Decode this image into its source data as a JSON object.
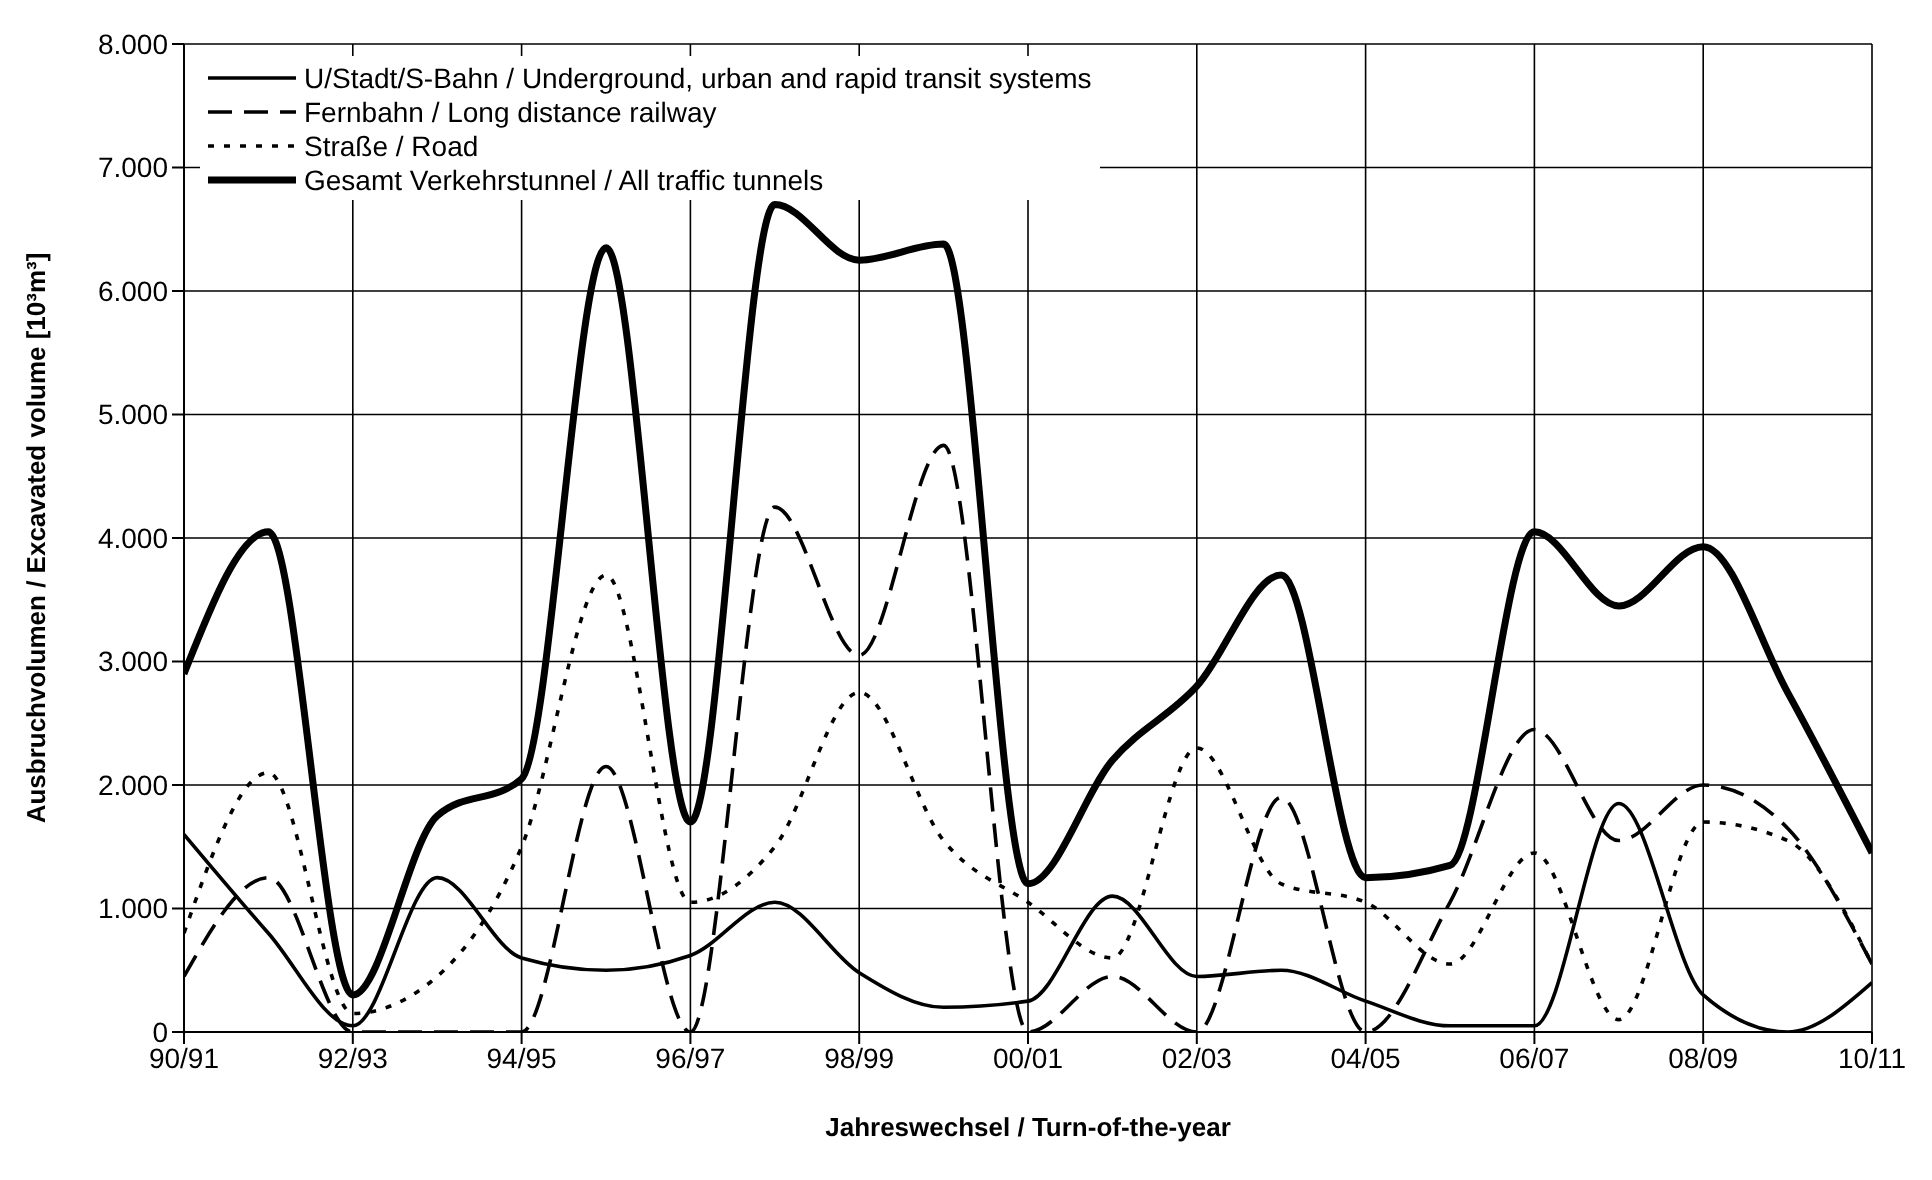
{
  "chart_data": {
    "type": "line",
    "xlabel": "Jahreswechsel / Turn-of-the-year",
    "ylabel": "Ausbruchvolumen / Excavated volume  [10³m³]",
    "categories": [
      "90/91",
      null,
      "92/93",
      null,
      "94/95",
      null,
      "96/97",
      null,
      "98/99",
      null,
      "00/01",
      null,
      "02/03",
      null,
      "04/05",
      null,
      "06/07",
      null,
      "08/09",
      null,
      "10/11"
    ],
    "series": [
      {
        "name": "U/Stadt/S-Bahn / Underground, urban and rapid transit systems",
        "color": "#000000",
        "line_style": "solid",
        "values": [
          1600,
          800,
          50,
          1250,
          600,
          500,
          620,
          1050,
          480,
          200,
          250,
          1100,
          450,
          500,
          250,
          50,
          50,
          1850,
          300,
          0,
          400
        ]
      },
      {
        "name": "Fernbahn / Long distance railway",
        "color": "#000000",
        "line_style": "dashed",
        "values": [
          450,
          1250,
          0,
          0,
          0,
          2150,
          0,
          4250,
          3050,
          4750,
          0,
          450,
          0,
          1900,
          0,
          1050,
          2450,
          1550,
          2000,
          1650,
          550
        ]
      },
      {
        "name": "Straße / Road",
        "color": "#000000",
        "line_style": "dotted",
        "values": [
          800,
          2100,
          150,
          450,
          1500,
          3700,
          1050,
          1500,
          2750,
          1550,
          1050,
          600,
          2300,
          1200,
          1050,
          550,
          1450,
          100,
          1700,
          1550,
          550
        ]
      },
      {
        "name": "Gesamt Verkehrstunnel / All traffic tunnels",
        "color": "#000000",
        "line_style": "solid",
        "values": [
          2900,
          4050,
          300,
          1750,
          2050,
          6350,
          1700,
          6700,
          6250,
          6380,
          1200,
          2200,
          2800,
          3700,
          1250,
          1350,
          4050,
          3450,
          3930,
          2750,
          1450
        ]
      }
    ],
    "ylim": [
      0,
      8000
    ],
    "yticks": [
      {
        "value": 0,
        "label": "0"
      },
      {
        "value": 1000,
        "label": "1.000"
      },
      {
        "value": 2000,
        "label": "2.000"
      },
      {
        "value": 3000,
        "label": "3.000"
      },
      {
        "value": 4000,
        "label": "4.000"
      },
      {
        "value": 5000,
        "label": "5.000"
      },
      {
        "value": 6000,
        "label": "6.000"
      },
      {
        "value": 7000,
        "label": "7.000"
      },
      {
        "value": 8000,
        "label": "8.000"
      }
    ],
    "grid": true,
    "legend": "top left"
  }
}
